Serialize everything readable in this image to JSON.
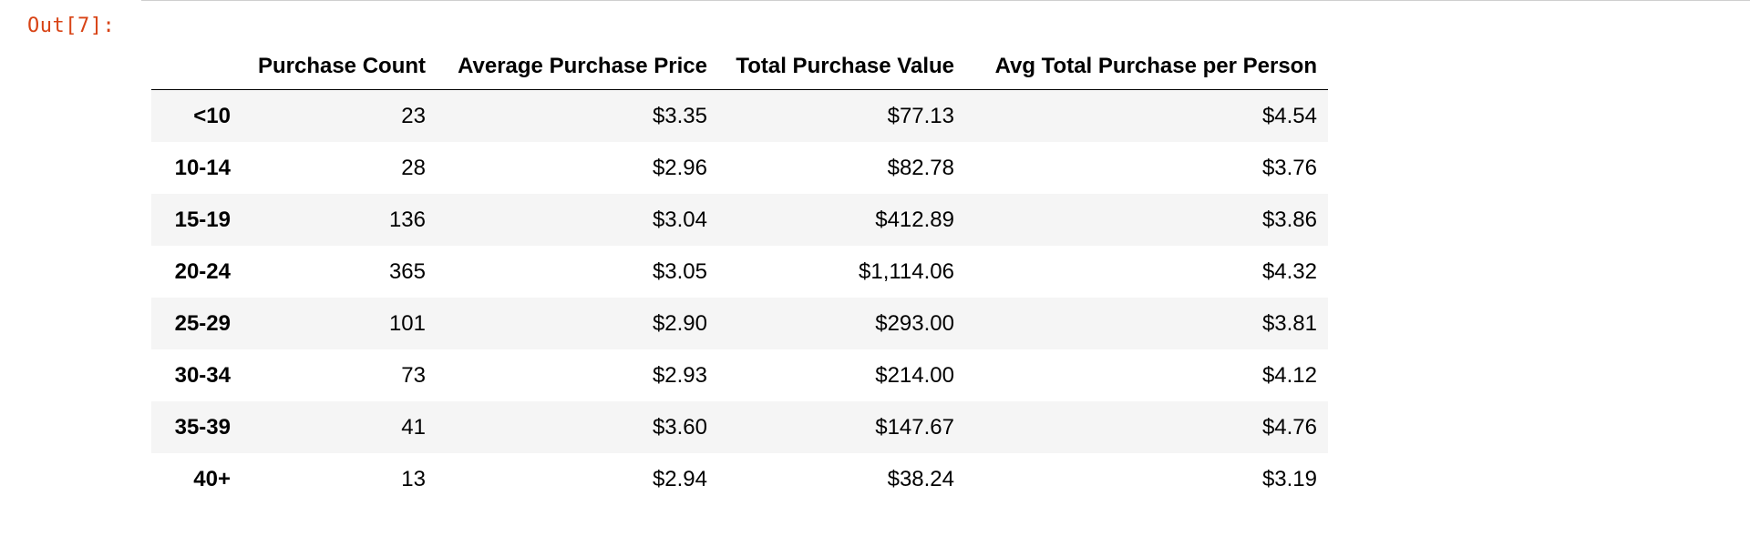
{
  "cell": {
    "prompt": "Out[7]:"
  },
  "table": {
    "columns": [
      "Purchase Count",
      "Average Purchase Price",
      "Total Purchase Value",
      "Avg Total Purchase per Person"
    ],
    "rows": [
      {
        "label": "<10",
        "values": [
          "23",
          "$3.35",
          "$77.13",
          "$4.54"
        ]
      },
      {
        "label": "10-14",
        "values": [
          "28",
          "$2.96",
          "$82.78",
          "$3.76"
        ]
      },
      {
        "label": "15-19",
        "values": [
          "136",
          "$3.04",
          "$412.89",
          "$3.86"
        ]
      },
      {
        "label": "20-24",
        "values": [
          "365",
          "$3.05",
          "$1,114.06",
          "$4.32"
        ]
      },
      {
        "label": "25-29",
        "values": [
          "101",
          "$2.90",
          "$293.00",
          "$3.81"
        ]
      },
      {
        "label": "30-34",
        "values": [
          "73",
          "$2.93",
          "$214.00",
          "$4.12"
        ]
      },
      {
        "label": "35-39",
        "values": [
          "41",
          "$3.60",
          "$147.67",
          "$4.76"
        ]
      },
      {
        "label": "40+",
        "values": [
          "13",
          "$2.94",
          "$38.24",
          "$3.19"
        ]
      }
    ]
  },
  "colors": {
    "prompt": "#d84315",
    "row_stripe": "#f5f5f5",
    "header_rule": "#000000"
  }
}
